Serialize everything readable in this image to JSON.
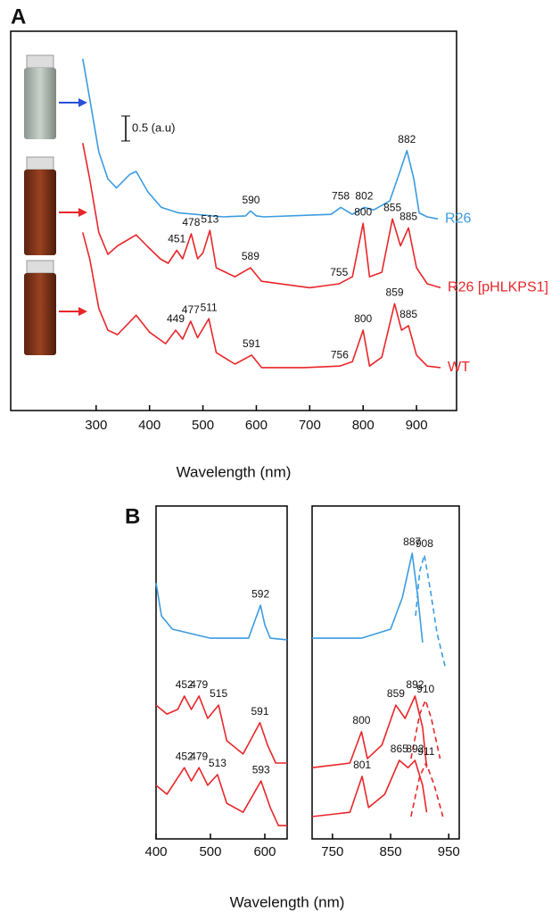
{
  "chart_data": [
    {
      "type": "line",
      "panel_label": "A",
      "xlabel": "Wavelength (nm)",
      "xlim": [
        140,
        975
      ],
      "ylim": [
        0,
        7.6
      ],
      "xticks": [
        300,
        400,
        500,
        600,
        700,
        800,
        900
      ],
      "scale_bar": {
        "value": 0.5,
        "label": "0.5 (a.u)"
      },
      "series": [
        {
          "name": "R26",
          "color": "#3b9be0",
          "x": [
            275,
            288,
            305,
            322,
            338,
            363,
            375,
            397,
            422,
            455,
            539,
            580,
            589,
            600,
            614,
            740,
            758,
            780,
            802,
            820,
            850,
            870,
            882,
            895,
            905,
            920,
            940
          ],
          "values": [
            7.05,
            6.25,
            5.18,
            4.64,
            4.46,
            4.73,
            4.79,
            4.38,
            4.07,
            3.96,
            3.88,
            3.9,
            4.0,
            3.9,
            3.88,
            3.93,
            4.07,
            3.93,
            4.07,
            4.02,
            4.2,
            4.82,
            5.21,
            4.64,
            3.96,
            3.88,
            3.84
          ],
          "peaks": [
            590,
            758,
            802,
            882
          ]
        },
        {
          "name": "R26 [pHLKPS1]",
          "color": "#e8262a",
          "x": [
            275,
            288,
            305,
            322,
            340,
            375,
            395,
            420,
            435,
            451,
            462,
            478,
            490,
            500,
            513,
            525,
            560,
            589,
            610,
            700,
            755,
            780,
            800,
            812,
            835,
            855,
            870,
            885,
            900,
            920,
            945
          ],
          "values": [
            5.36,
            4.64,
            3.57,
            3.13,
            3.3,
            3.52,
            3.3,
            3.04,
            2.95,
            3.21,
            3.04,
            3.54,
            3.04,
            3.16,
            3.61,
            2.86,
            2.68,
            2.86,
            2.59,
            2.46,
            2.54,
            2.68,
            3.75,
            2.68,
            2.77,
            3.84,
            3.3,
            3.66,
            2.86,
            2.54,
            2.46
          ],
          "peaks": [
            451,
            478,
            513,
            589,
            755,
            800,
            855,
            885
          ]
        },
        {
          "name": "WT",
          "color": "#e8262a",
          "x": [
            275,
            288,
            305,
            322,
            340,
            375,
            400,
            430,
            449,
            462,
            477,
            490,
            511,
            525,
            560,
            591,
            610,
            690,
            756,
            780,
            800,
            812,
            835,
            859,
            872,
            885,
            900,
            920,
            945
          ],
          "values": [
            3.57,
            3.04,
            2.05,
            1.61,
            1.52,
            1.91,
            1.57,
            1.34,
            1.61,
            1.43,
            1.79,
            1.46,
            1.84,
            1.16,
            0.93,
            1.11,
            0.86,
            0.86,
            0.89,
            0.98,
            1.61,
            0.89,
            1.07,
            2.14,
            1.61,
            1.7,
            1.11,
            0.89,
            0.86
          ],
          "peaks": [
            449,
            477,
            511,
            591,
            756,
            800,
            859,
            885
          ]
        }
      ]
    },
    {
      "type": "line",
      "panel_label": "B",
      "xlabel": "Wavelength (nm)",
      "xlim": [
        400,
        641
      ],
      "ylim": [
        0,
        10
      ],
      "xticks": [
        400,
        500,
        600
      ],
      "series": [
        {
          "color": "#3b9be0",
          "x": [
            400,
            410,
            430,
            500,
            570,
            585,
            592,
            600,
            610,
            641
          ],
          "values": [
            7.69,
            6.7,
            6.3,
            6.03,
            6.03,
            6.7,
            7.02,
            6.43,
            6.03,
            5.98
          ],
          "peaks": [
            592
          ]
        },
        {
          "color": "#e8262a",
          "x": [
            400,
            420,
            440,
            452,
            465,
            479,
            495,
            515,
            530,
            560,
            591,
            605,
            620,
            641
          ],
          "values": [
            4.02,
            3.75,
            3.89,
            4.29,
            3.89,
            4.29,
            3.62,
            4.02,
            2.95,
            2.55,
            3.49,
            2.82,
            2.28,
            2.28
          ],
          "peaks": [
            452,
            479,
            515,
            591
          ]
        },
        {
          "color": "#e8262a",
          "x": [
            400,
            420,
            452,
            465,
            479,
            495,
            513,
            530,
            560,
            593,
            610,
            625,
            641
          ],
          "values": [
            1.61,
            1.34,
            2.14,
            1.74,
            2.14,
            1.61,
            1.93,
            1.07,
            0.8,
            1.74,
            0.94,
            0.4,
            0.4
          ],
          "peaks": [
            452,
            479,
            513,
            593
          ]
        }
      ]
    },
    {
      "type": "line",
      "xlim": [
        715,
        968
      ],
      "ylim": [
        0,
        10
      ],
      "xticks": [
        750,
        850,
        950
      ],
      "series": [
        {
          "color": "#3b9be0",
          "x": [
            715,
            800,
            850,
            870,
            887,
            897,
            905
          ],
          "values": [
            6.03,
            6.03,
            6.3,
            7.24,
            8.58,
            7.24,
            5.9
          ],
          "peaks": [
            887
          ]
        },
        {
          "color": "#3b9be0",
          "dash": true,
          "x": [
            893,
            900,
            908,
            918,
            930,
            945
          ],
          "values": [
            6.7,
            8.04,
            8.53,
            7.51,
            6.17,
            5.09
          ],
          "peaks": [
            908
          ]
        },
        {
          "color": "#e8262a",
          "x": [
            715,
            780,
            800,
            810,
            835,
            859,
            875,
            892,
            905,
            912
          ],
          "values": [
            2.14,
            2.28,
            3.22,
            2.41,
            2.82,
            4.02,
            3.62,
            4.29,
            3.35,
            2.14
          ],
          "peaks": [
            800,
            859,
            892
          ]
        },
        {
          "color": "#e8262a",
          "dash": true,
          "x": [
            885,
            900,
            910,
            920,
            935
          ],
          "values": [
            2.41,
            3.75,
            4.16,
            3.62,
            2.41
          ],
          "peaks": [
            910
          ]
        },
        {
          "color": "#e8262a",
          "x": [
            715,
            780,
            801,
            812,
            840,
            865,
            880,
            892,
            905,
            912
          ],
          "values": [
            0.67,
            0.8,
            1.88,
            0.94,
            1.34,
            2.36,
            2.14,
            2.36,
            1.61,
            0.8
          ],
          "peaks": [
            801,
            865,
            892
          ]
        },
        {
          "color": "#e8262a",
          "dash": true,
          "x": [
            885,
            900,
            911,
            925,
            940
          ],
          "values": [
            0.67,
            1.88,
            2.28,
            1.61,
            0.67
          ],
          "peaks": [
            911
          ]
        }
      ]
    }
  ]
}
